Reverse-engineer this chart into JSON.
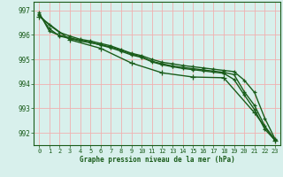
{
  "bg_color": "#d8f0ec",
  "grid_color": "#f0b0b0",
  "line_color": "#1a5c1a",
  "spine_color": "#1a5c1a",
  "title": "Graphe pression niveau de la mer (hPa)",
  "ylabel_ticks": [
    992,
    993,
    994,
    995,
    996,
    997
  ],
  "xlim": [
    -0.5,
    23.5
  ],
  "ylim": [
    991.5,
    997.35
  ],
  "series": [
    {
      "x": [
        0,
        1,
        2,
        3,
        4,
        5,
        6,
        7,
        8,
        9,
        10,
        11,
        12,
        13,
        14,
        15,
        16,
        17,
        18,
        19,
        20,
        21,
        22,
        23
      ],
      "y": [
        996.8,
        996.4,
        996.1,
        995.95,
        995.82,
        995.75,
        995.65,
        995.55,
        995.4,
        995.25,
        995.15,
        995.0,
        994.88,
        994.82,
        994.75,
        994.7,
        994.65,
        994.6,
        994.55,
        994.5,
        994.15,
        993.65,
        992.6,
        991.75
      ]
    },
    {
      "x": [
        0,
        1,
        2,
        3,
        4,
        5,
        6,
        7,
        8,
        9,
        10,
        11,
        12,
        13,
        14,
        15,
        16,
        17,
        18,
        19,
        20,
        21,
        22,
        23
      ],
      "y": [
        996.85,
        996.25,
        995.95,
        995.85,
        995.75,
        995.68,
        995.6,
        995.5,
        995.38,
        995.22,
        995.1,
        994.92,
        994.82,
        994.73,
        994.67,
        994.62,
        994.57,
        994.52,
        994.47,
        994.38,
        993.68,
        993.12,
        992.28,
        991.72
      ]
    },
    {
      "x": [
        0,
        1,
        2,
        3,
        4,
        5,
        6,
        7,
        8,
        9,
        10,
        11,
        12,
        13,
        14,
        15,
        16,
        17,
        18,
        19,
        20,
        21,
        22,
        23
      ],
      "y": [
        996.9,
        996.15,
        995.98,
        995.88,
        995.78,
        995.7,
        995.58,
        995.47,
        995.33,
        995.18,
        995.08,
        994.9,
        994.78,
        994.7,
        994.63,
        994.58,
        994.53,
        994.48,
        994.43,
        994.18,
        993.55,
        992.95,
        992.15,
        991.7
      ]
    },
    {
      "x": [
        0,
        3,
        6,
        9,
        12,
        15,
        18,
        21,
        23
      ],
      "y": [
        996.75,
        995.8,
        995.45,
        994.85,
        994.45,
        994.28,
        994.25,
        992.82,
        991.68
      ]
    }
  ]
}
